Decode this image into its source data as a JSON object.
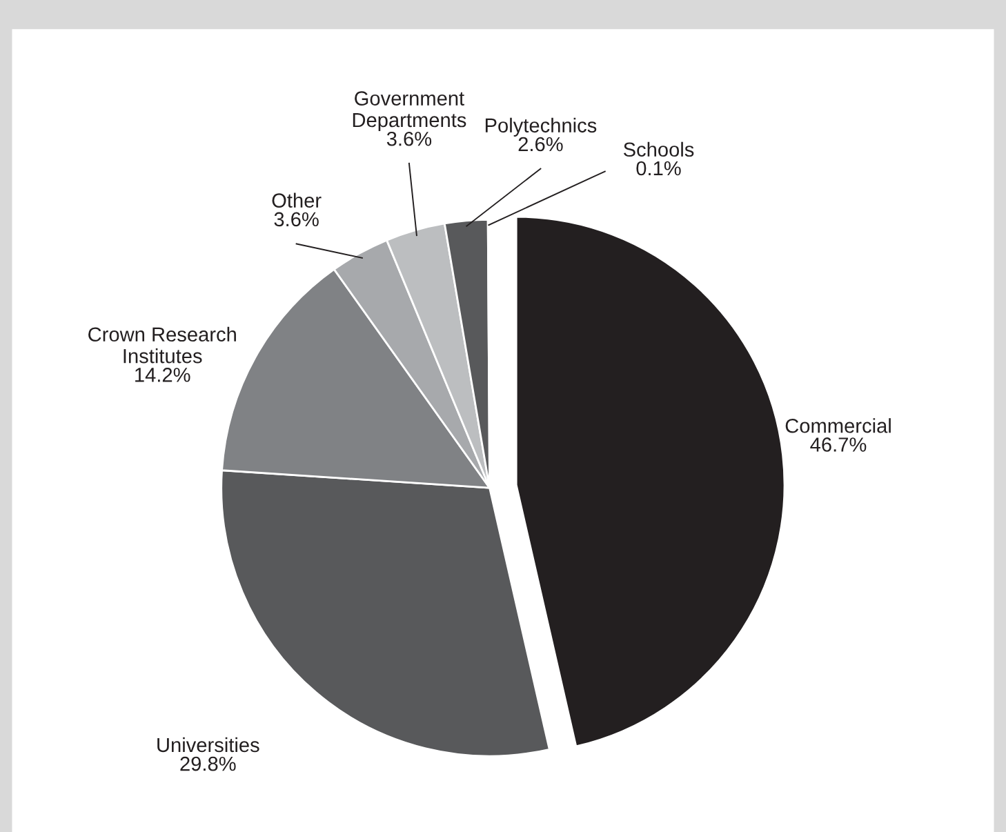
{
  "chart_data": {
    "type": "pie",
    "categories": [
      "Commercial",
      "Universities",
      "Crown Research\nInstitutes",
      "Other",
      "Government\nDepartments",
      "Polytechnics",
      "Schools"
    ],
    "values": [
      46.7,
      29.8,
      14.2,
      3.6,
      3.6,
      2.6,
      0.1
    ],
    "colors": [
      "#231f20",
      "#58595b",
      "#808285",
      "#a7a9ac",
      "#bcbec0",
      "#58595b",
      "#d1d3d4"
    ],
    "value_labels": [
      "46.7%",
      "29.8%",
      "14.2%",
      "3.6%",
      "3.6%",
      "2.6%",
      "0.1%"
    ],
    "legend": false
  }
}
